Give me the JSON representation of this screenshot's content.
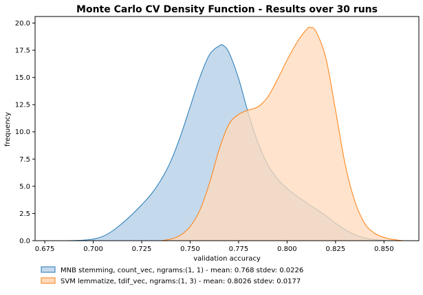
{
  "chart_data": {
    "type": "area",
    "title": "Monte Carlo CV Density Function - Results over 30 runs",
    "xlabel": "validation accuracy",
    "ylabel": "frequency",
    "xlim": [
      0.67,
      0.868
    ],
    "ylim": [
      0,
      20.6
    ],
    "xticks": [
      "0.675",
      "0.700",
      "0.725",
      "0.750",
      "0.775",
      "0.800",
      "0.825",
      "0.850"
    ],
    "yticks": [
      "0.0",
      "2.5",
      "5.0",
      "7.5",
      "10.0",
      "12.5",
      "15.0",
      "17.5",
      "20.0"
    ],
    "grid": false,
    "legend_position": "bottom-left, below axes",
    "series": [
      {
        "name": "MNB stemming, count_vec, ngrams:(1, 1) - mean: 0.768 stdev: 0.0226",
        "fill_color": "#c5d9ec",
        "line_color": "#1f77b4",
        "x": [
          0.686,
          0.695,
          0.7,
          0.705,
          0.71,
          0.715,
          0.72,
          0.725,
          0.73,
          0.735,
          0.74,
          0.745,
          0.75,
          0.755,
          0.76,
          0.765,
          0.767,
          0.77,
          0.775,
          0.78,
          0.785,
          0.79,
          0.795,
          0.8,
          0.805,
          0.81,
          0.815,
          0.82,
          0.825,
          0.83,
          0.835,
          0.84,
          0.845,
          0.85,
          0.855
        ],
        "y": [
          0.0,
          0.05,
          0.15,
          0.4,
          0.9,
          1.6,
          2.4,
          3.3,
          4.3,
          5.6,
          7.3,
          9.6,
          12.3,
          15.0,
          17.1,
          17.9,
          17.95,
          17.3,
          14.9,
          11.7,
          9.0,
          7.0,
          5.7,
          4.8,
          4.1,
          3.5,
          2.9,
          2.3,
          1.6,
          1.0,
          0.55,
          0.25,
          0.1,
          0.03,
          0.0
        ]
      },
      {
        "name": "SVM lemmatize, tdif_vec, ngrams:(1, 3) - mean: 0.8026 stdev: 0.0177",
        "fill_color": "#ffdabb",
        "line_color": "#ff7f0e",
        "x": [
          0.735,
          0.74,
          0.745,
          0.75,
          0.755,
          0.76,
          0.765,
          0.77,
          0.775,
          0.78,
          0.785,
          0.79,
          0.795,
          0.8,
          0.805,
          0.81,
          0.812,
          0.815,
          0.82,
          0.825,
          0.83,
          0.835,
          0.84,
          0.845,
          0.85,
          0.855,
          0.86
        ],
        "y": [
          0.0,
          0.15,
          0.5,
          1.3,
          2.8,
          5.3,
          8.4,
          10.7,
          11.6,
          12.0,
          12.3,
          13.2,
          14.8,
          16.6,
          18.2,
          19.4,
          19.6,
          19.2,
          16.8,
          12.0,
          7.0,
          3.6,
          1.6,
          0.7,
          0.3,
          0.1,
          0.0
        ]
      }
    ]
  }
}
